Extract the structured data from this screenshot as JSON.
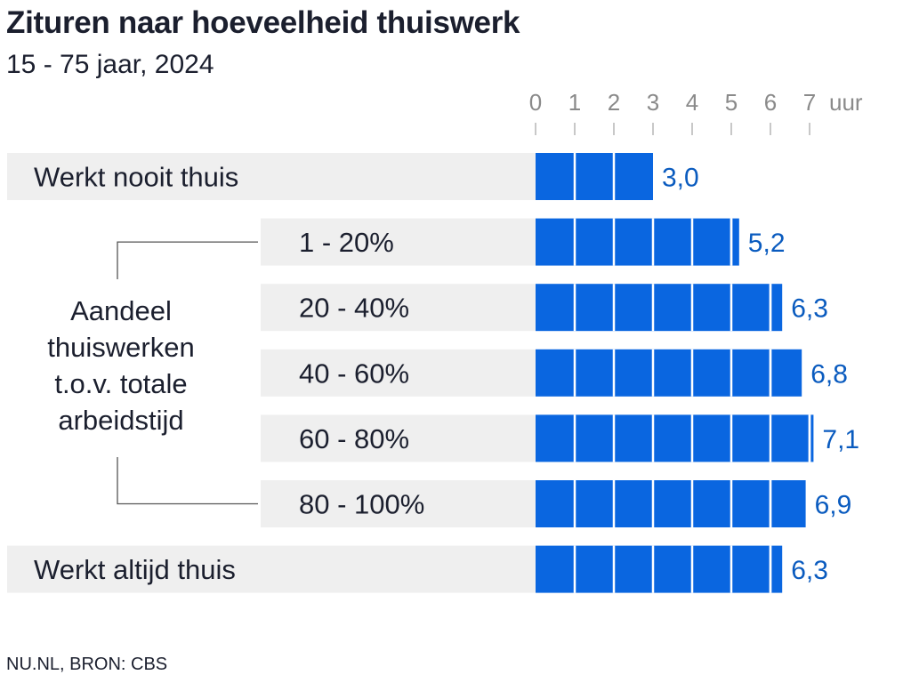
{
  "title": "Zituren naar hoeveelheid thuiswerk",
  "subtitle": "15 - 75 jaar, 2024",
  "source": "NU.NL, BRON: CBS",
  "group_label": [
    "Aandeel",
    "thuiswerken",
    "t.o.v. totale",
    "arbeidstijd"
  ],
  "colors": {
    "bar": "#0a66e0",
    "value_label": "#0a5bbf",
    "row_bg": "#efefef",
    "text": "#1b1f2e",
    "axis": "#8a8a8a"
  },
  "chart_data": {
    "type": "bar",
    "orientation": "horizontal",
    "categories": [
      "Werkt nooit thuis",
      "1 - 20%",
      "20 - 40%",
      "40 - 60%",
      "60 - 80%",
      "80 - 100%",
      "Werkt altijd thuis"
    ],
    "values": [
      3.0,
      5.2,
      6.3,
      6.8,
      7.1,
      6.9,
      6.3
    ],
    "value_labels": [
      "3,0",
      "5,2",
      "6,3",
      "6,8",
      "7,1",
      "6,9",
      "6,3"
    ],
    "x_ticks": [
      "0",
      "1",
      "2",
      "3",
      "4",
      "5",
      "6",
      "7"
    ],
    "x_unit": "uur",
    "xlim": [
      0,
      7
    ],
    "grouped_rows": [
      1,
      2,
      3,
      4,
      5
    ],
    "grid": false,
    "unit_segments": true
  }
}
